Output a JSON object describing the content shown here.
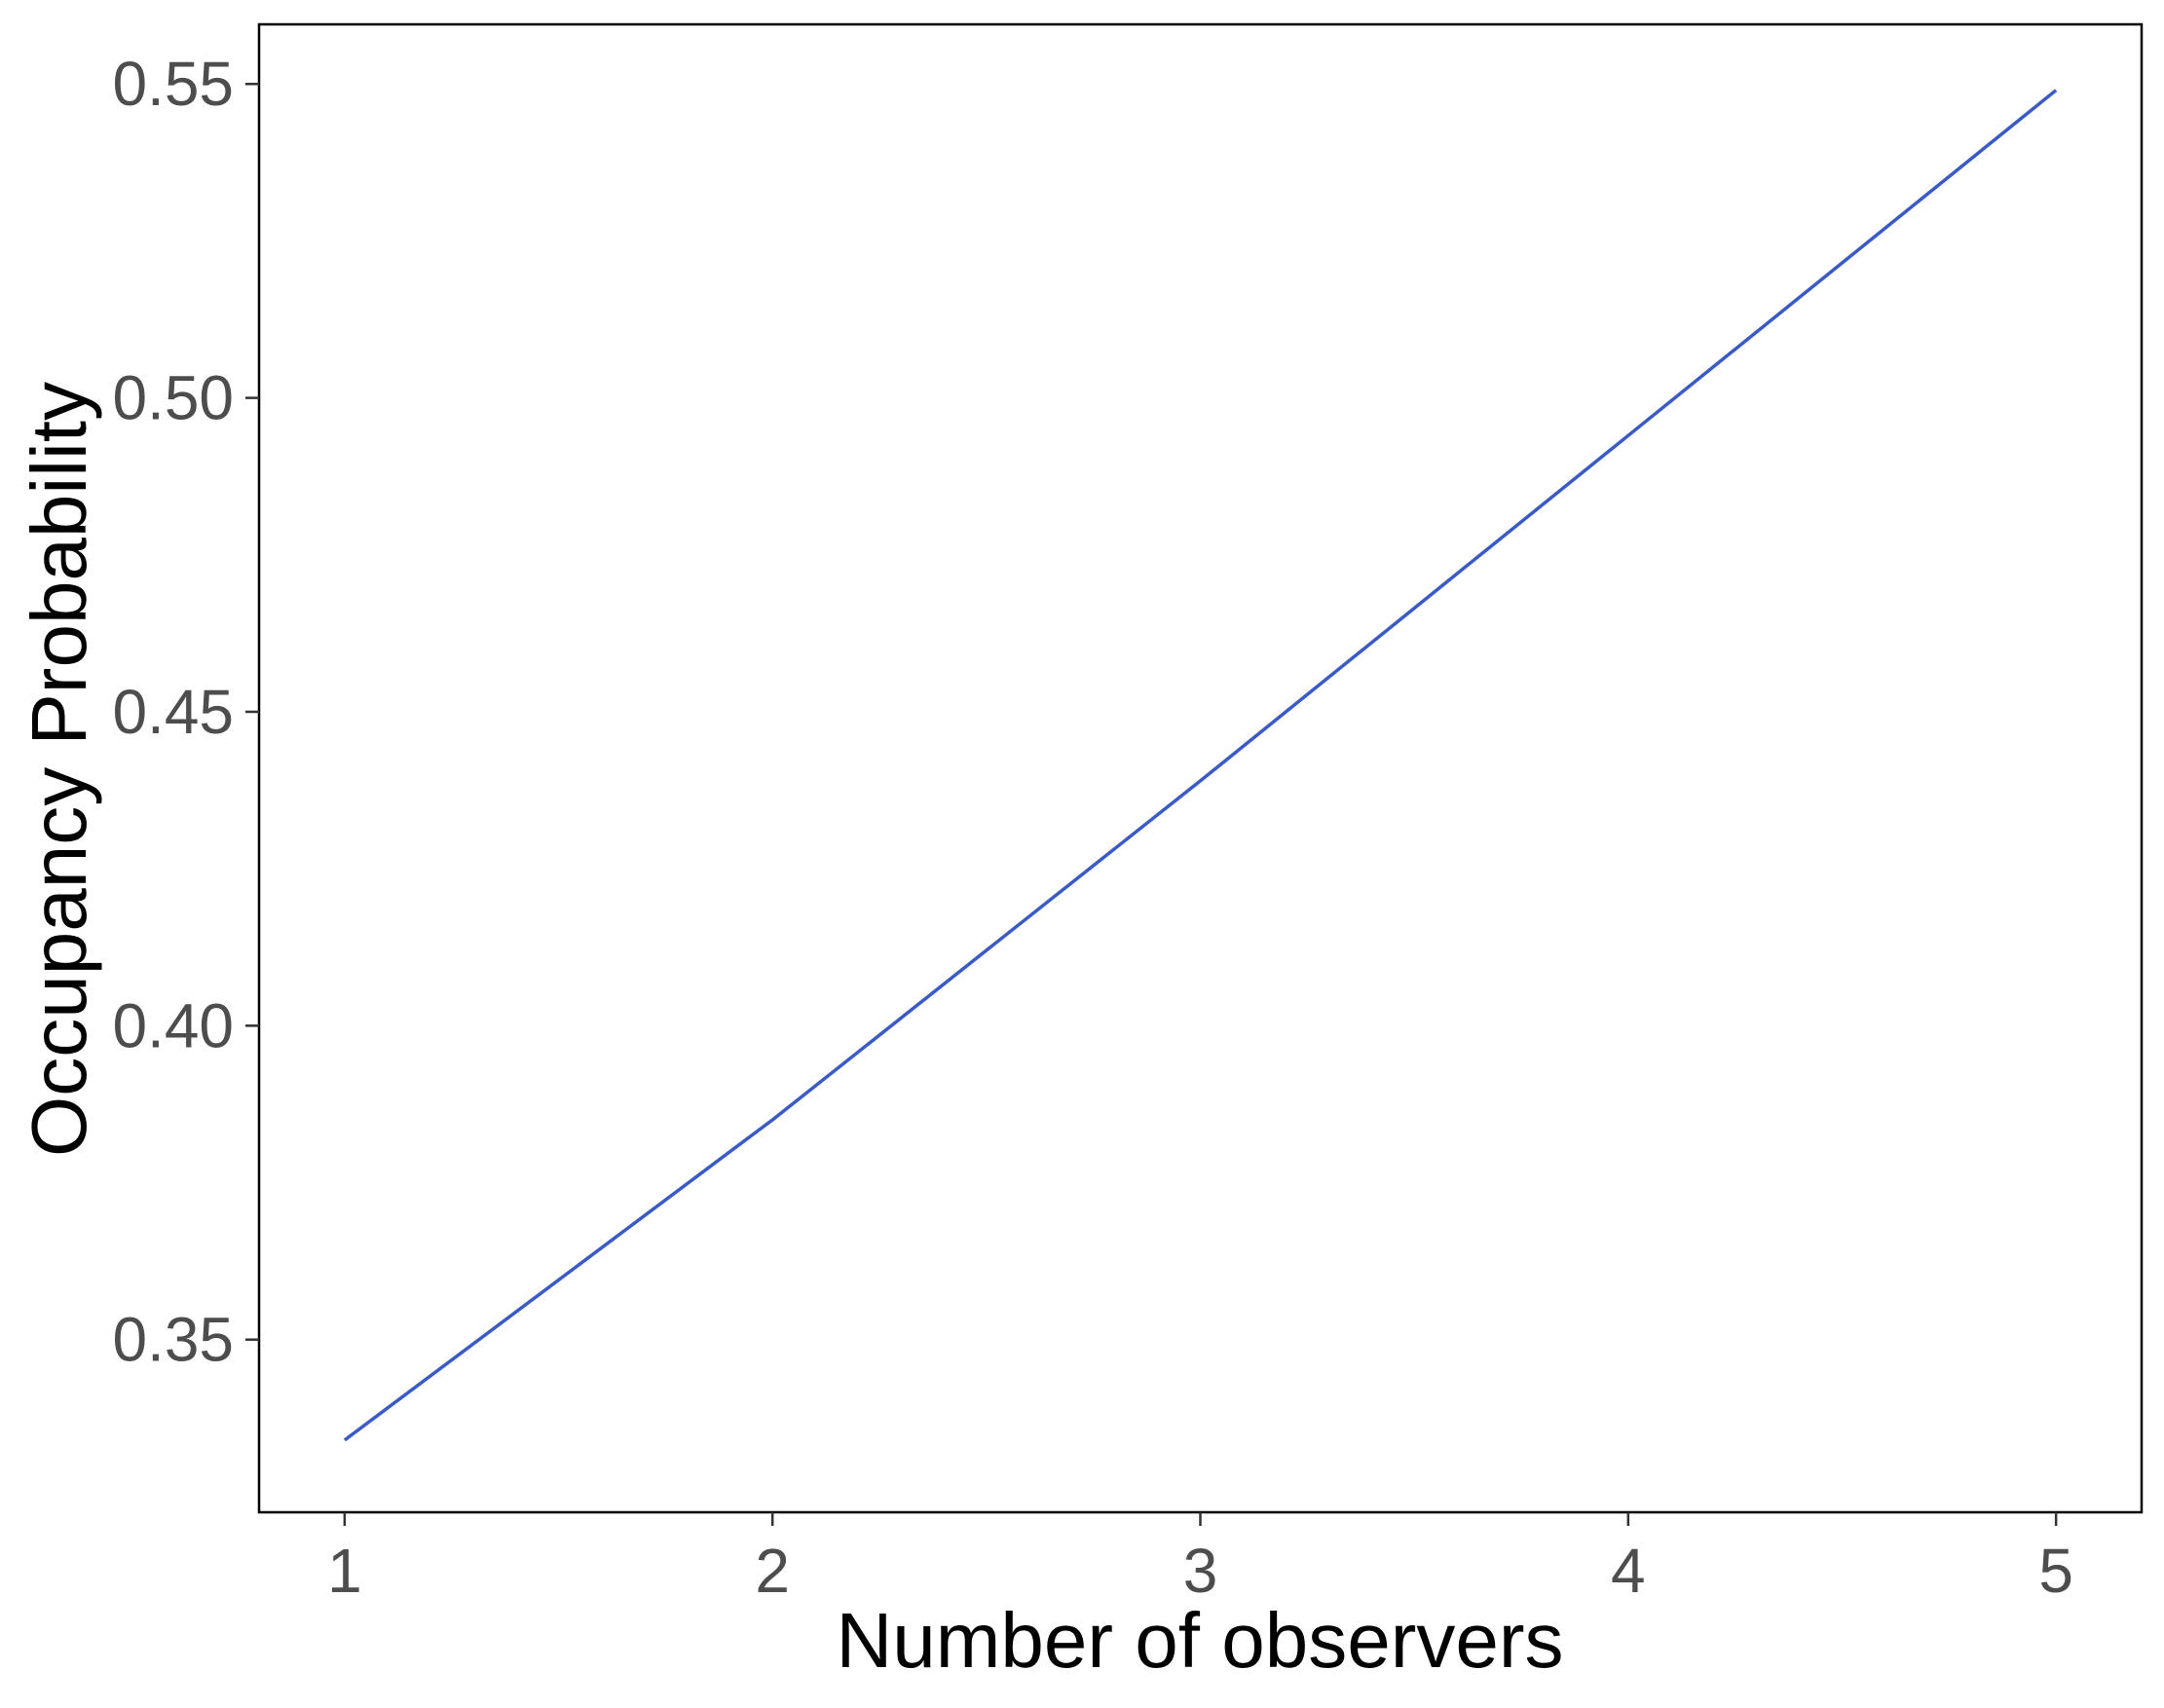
{
  "chart_data": {
    "type": "line",
    "title": "",
    "xlabel": "Number of observers",
    "ylabel": "Occupancy Probability",
    "x": [
      1,
      2,
      3,
      4,
      5
    ],
    "series": [
      {
        "values": [
          0.334,
          0.385,
          0.439,
          0.494,
          0.549
        ],
        "color": "#3a5bc7"
      }
    ],
    "xlim": [
      0.8,
      5.2
    ],
    "ylim": [
      0.3225,
      0.5595
    ],
    "x_ticks": [
      1,
      2,
      3,
      4,
      5
    ],
    "x_tick_labels": [
      "1",
      "2",
      "3",
      "4",
      "5"
    ],
    "y_ticks": [
      0.35,
      0.4,
      0.45,
      0.5,
      0.55
    ],
    "y_tick_labels": [
      "0.35",
      "0.40",
      "0.45",
      "0.50",
      "0.55"
    ],
    "grid": false,
    "legend": "none"
  }
}
